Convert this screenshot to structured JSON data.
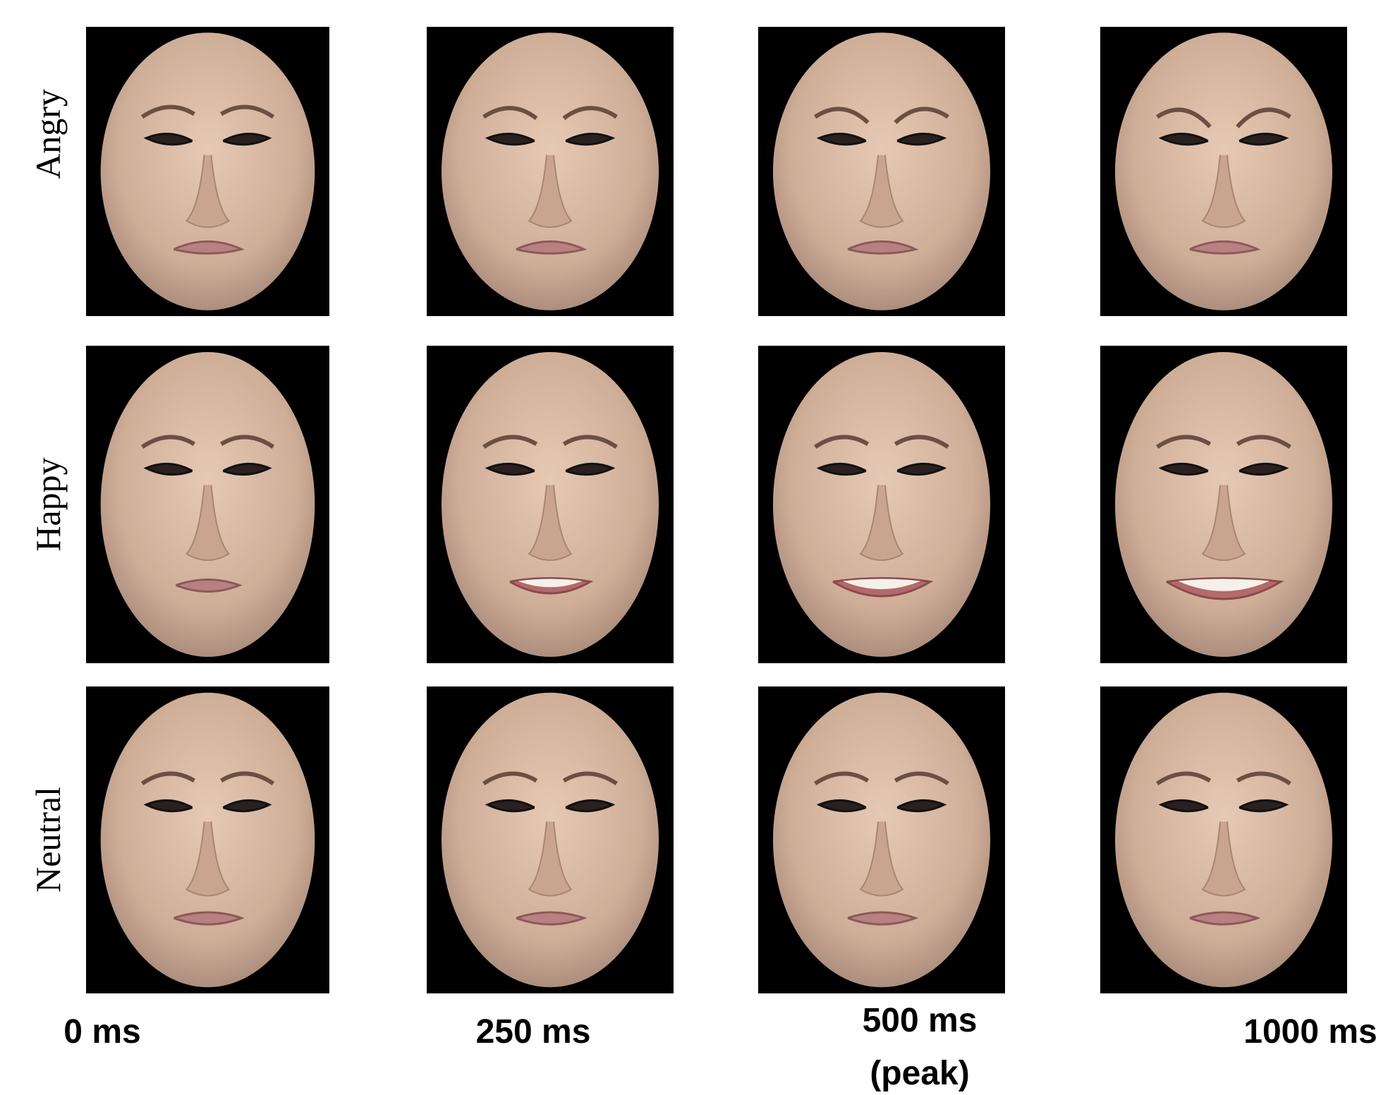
{
  "rows": [
    "Angry",
    "Happy",
    "Neutral"
  ],
  "columns": [
    {
      "label": "0 ms"
    },
    {
      "label": "250 ms"
    },
    {
      "label": "500 ms",
      "note": "(peak)"
    },
    {
      "label": "1000 ms"
    }
  ]
}
